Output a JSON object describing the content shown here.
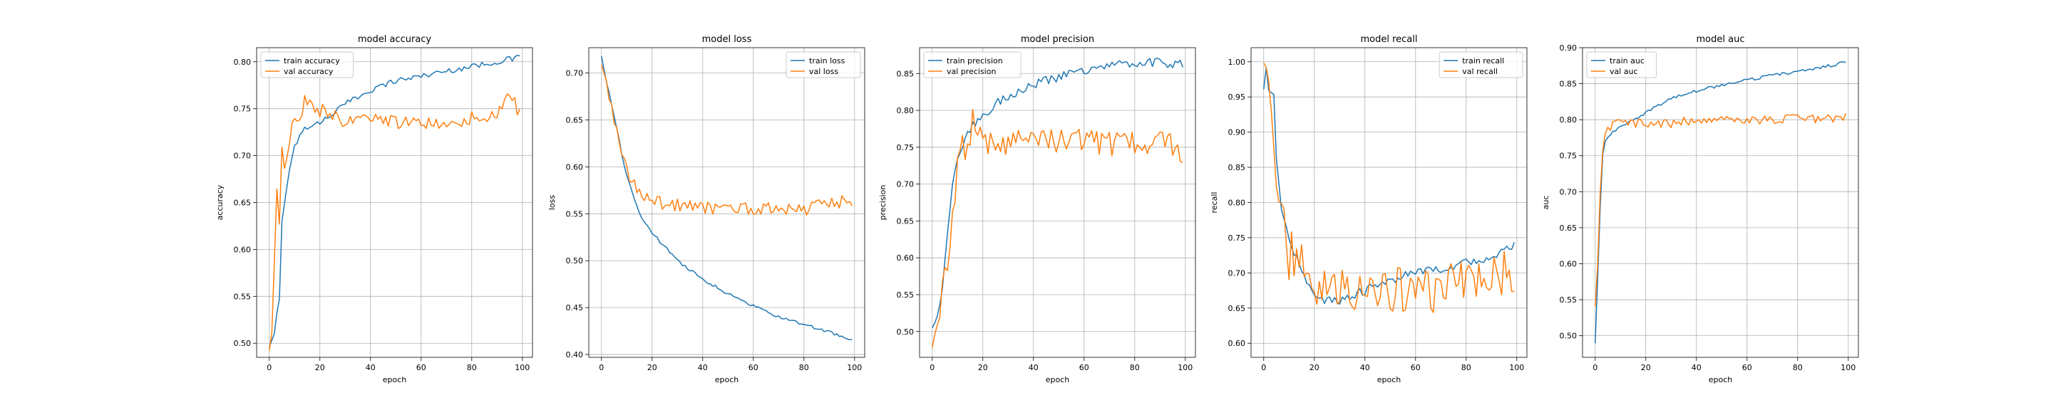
{
  "chart_data": [
    {
      "type": "line",
      "title": "model accuracy",
      "xlabel": "epoch",
      "ylabel": "accuracy",
      "xlim": [
        -5,
        104
      ],
      "ylim": [
        0.485,
        0.815
      ],
      "xticks": [
        0,
        20,
        40,
        60,
        80,
        100
      ],
      "yticks": [
        0.5,
        0.55,
        0.6,
        0.65,
        0.7,
        0.75,
        0.8
      ],
      "legend_position": "upper-left",
      "grid": true,
      "colors": [
        "#1f77b4",
        "#ff7f0e"
      ],
      "series": [
        {
          "name": "train accuracy",
          "anchors": [
            [
              0,
              0.495
            ],
            [
              2,
              0.51
            ],
            [
              4,
              0.55
            ],
            [
              5,
              0.63
            ],
            [
              7,
              0.67
            ],
            [
              10,
              0.71
            ],
            [
              14,
              0.73
            ],
            [
              20,
              0.735
            ],
            [
              25,
              0.745
            ],
            [
              30,
              0.755
            ],
            [
              40,
              0.77
            ],
            [
              50,
              0.78
            ],
            [
              60,
              0.785
            ],
            [
              70,
              0.79
            ],
            [
              80,
              0.795
            ],
            [
              90,
              0.8
            ],
            [
              99,
              0.805
            ]
          ]
        },
        {
          "name": "val accuracy",
          "anchors": [
            [
              0,
              0.49
            ],
            [
              1,
              0.51
            ],
            [
              3,
              0.66
            ],
            [
              4,
              0.63
            ],
            [
              5,
              0.71
            ],
            [
              6,
              0.69
            ],
            [
              8,
              0.72
            ],
            [
              10,
              0.74
            ],
            [
              12,
              0.735
            ],
            [
              14,
              0.76
            ],
            [
              18,
              0.745
            ],
            [
              22,
              0.75
            ],
            [
              30,
              0.735
            ],
            [
              40,
              0.74
            ],
            [
              50,
              0.735
            ],
            [
              60,
              0.735
            ],
            [
              70,
              0.73
            ],
            [
              80,
              0.74
            ],
            [
              90,
              0.745
            ],
            [
              95,
              0.765
            ],
            [
              99,
              0.745
            ]
          ]
        }
      ]
    },
    {
      "type": "line",
      "title": "model loss",
      "xlabel": "epoch",
      "ylabel": "loss",
      "xlim": [
        -5,
        104
      ],
      "ylim": [
        0.397,
        0.727
      ],
      "xticks": [
        0,
        20,
        40,
        60,
        80,
        100
      ],
      "yticks": [
        0.4,
        0.45,
        0.5,
        0.55,
        0.6,
        0.65,
        0.7
      ],
      "legend_position": "upper-right",
      "grid": true,
      "colors": [
        "#1f77b4",
        "#ff7f0e"
      ],
      "series": [
        {
          "name": "train loss",
          "anchors": [
            [
              0,
              0.718
            ],
            [
              2,
              0.69
            ],
            [
              5,
              0.655
            ],
            [
              8,
              0.615
            ],
            [
              10,
              0.59
            ],
            [
              13,
              0.565
            ],
            [
              16,
              0.545
            ],
            [
              20,
              0.53
            ],
            [
              25,
              0.515
            ],
            [
              30,
              0.5
            ],
            [
              40,
              0.48
            ],
            [
              50,
              0.465
            ],
            [
              60,
              0.452
            ],
            [
              70,
              0.44
            ],
            [
              80,
              0.432
            ],
            [
              90,
              0.424
            ],
            [
              99,
              0.415
            ]
          ]
        },
        {
          "name": "val loss",
          "anchors": [
            [
              0,
              0.71
            ],
            [
              2,
              0.69
            ],
            [
              5,
              0.65
            ],
            [
              8,
              0.615
            ],
            [
              10,
              0.595
            ],
            [
              13,
              0.58
            ],
            [
              16,
              0.57
            ],
            [
              20,
              0.565
            ],
            [
              25,
              0.56
            ],
            [
              30,
              0.56
            ],
            [
              40,
              0.555
            ],
            [
              50,
              0.558
            ],
            [
              60,
              0.555
            ],
            [
              70,
              0.555
            ],
            [
              80,
              0.555
            ],
            [
              90,
              0.56
            ],
            [
              99,
              0.565
            ]
          ]
        }
      ]
    },
    {
      "type": "line",
      "title": "model precision",
      "xlabel": "epoch",
      "ylabel": "precision",
      "xlim": [
        -5,
        104
      ],
      "ylim": [
        0.465,
        0.885
      ],
      "xticks": [
        0,
        20,
        40,
        60,
        80,
        100
      ],
      "yticks": [
        0.5,
        0.55,
        0.6,
        0.65,
        0.7,
        0.75,
        0.8,
        0.85
      ],
      "legend_position": "upper-left",
      "grid": true,
      "colors": [
        "#1f77b4",
        "#ff7f0e"
      ],
      "series": [
        {
          "name": "train precision",
          "anchors": [
            [
              0,
              0.505
            ],
            [
              2,
              0.52
            ],
            [
              4,
              0.56
            ],
            [
              6,
              0.63
            ],
            [
              8,
              0.7
            ],
            [
              10,
              0.74
            ],
            [
              13,
              0.76
            ],
            [
              16,
              0.78
            ],
            [
              20,
              0.79
            ],
            [
              25,
              0.81
            ],
            [
              30,
              0.82
            ],
            [
              40,
              0.835
            ],
            [
              50,
              0.845
            ],
            [
              60,
              0.855
            ],
            [
              70,
              0.86
            ],
            [
              80,
              0.865
            ],
            [
              90,
              0.865
            ],
            [
              99,
              0.862
            ]
          ]
        },
        {
          "name": "val precision",
          "anchors": [
            [
              0,
              0.48
            ],
            [
              1,
              0.495
            ],
            [
              3,
              0.52
            ],
            [
              5,
              0.6
            ],
            [
              6,
              0.58
            ],
            [
              8,
              0.65
            ],
            [
              10,
              0.73
            ],
            [
              12,
              0.76
            ],
            [
              14,
              0.74
            ],
            [
              16,
              0.79
            ],
            [
              20,
              0.76
            ],
            [
              30,
              0.755
            ],
            [
              40,
              0.755
            ],
            [
              50,
              0.76
            ],
            [
              60,
              0.76
            ],
            [
              70,
              0.755
            ],
            [
              80,
              0.755
            ],
            [
              90,
              0.76
            ],
            [
              99,
              0.745
            ]
          ]
        }
      ]
    },
    {
      "type": "line",
      "title": "model recall",
      "xlabel": "epoch",
      "ylabel": "recall",
      "xlim": [
        -5,
        104
      ],
      "ylim": [
        0.58,
        1.02
      ],
      "xticks": [
        0,
        20,
        40,
        60,
        80,
        100
      ],
      "yticks": [
        0.6,
        0.65,
        0.7,
        0.75,
        0.8,
        0.85,
        0.9,
        0.95,
        1.0
      ],
      "legend_position": "upper-right",
      "grid": true,
      "colors": [
        "#1f77b4",
        "#ff7f0e"
      ],
      "series": [
        {
          "name": "train recall",
          "anchors": [
            [
              0,
              0.96
            ],
            [
              1,
              0.99
            ],
            [
              2,
              0.96
            ],
            [
              4,
              0.95
            ],
            [
              5,
              0.86
            ],
            [
              7,
              0.79
            ],
            [
              9,
              0.76
            ],
            [
              11,
              0.74
            ],
            [
              14,
              0.71
            ],
            [
              17,
              0.69
            ],
            [
              20,
              0.67
            ],
            [
              25,
              0.66
            ],
            [
              30,
              0.66
            ],
            [
              40,
              0.675
            ],
            [
              50,
              0.69
            ],
            [
              60,
              0.7
            ],
            [
              70,
              0.705
            ],
            [
              80,
              0.715
            ],
            [
              90,
              0.72
            ],
            [
              99,
              0.74
            ]
          ]
        },
        {
          "name": "val recall",
          "anchors": [
            [
              0,
              1.0
            ],
            [
              2,
              0.98
            ],
            [
              4,
              0.85
            ],
            [
              6,
              0.82
            ],
            [
              8,
              0.79
            ],
            [
              10,
              0.72
            ],
            [
              13,
              0.73
            ],
            [
              16,
              0.7
            ],
            [
              20,
              0.67
            ],
            [
              25,
              0.67
            ],
            [
              30,
              0.675
            ],
            [
              40,
              0.68
            ],
            [
              50,
              0.68
            ],
            [
              60,
              0.675
            ],
            [
              70,
              0.68
            ],
            [
              80,
              0.7
            ],
            [
              90,
              0.7
            ],
            [
              99,
              0.7
            ]
          ]
        }
      ]
    },
    {
      "type": "line",
      "title": "model auc",
      "xlabel": "epoch",
      "ylabel": "auc",
      "xlim": [
        -5,
        104
      ],
      "ylim": [
        0.47,
        0.9
      ],
      "xticks": [
        0,
        20,
        40,
        60,
        80,
        100
      ],
      "yticks": [
        0.5,
        0.55,
        0.6,
        0.65,
        0.7,
        0.75,
        0.8,
        0.85,
        0.9
      ],
      "legend_position": "upper-left",
      "grid": true,
      "colors": [
        "#1f77b4",
        "#ff7f0e"
      ],
      "series": [
        {
          "name": "train auc",
          "anchors": [
            [
              0,
              0.49
            ],
            [
              1,
              0.58
            ],
            [
              2,
              0.68
            ],
            [
              3,
              0.75
            ],
            [
              4,
              0.77
            ],
            [
              6,
              0.78
            ],
            [
              8,
              0.785
            ],
            [
              12,
              0.795
            ],
            [
              16,
              0.8
            ],
            [
              20,
              0.81
            ],
            [
              25,
              0.82
            ],
            [
              30,
              0.83
            ],
            [
              40,
              0.84
            ],
            [
              50,
              0.848
            ],
            [
              60,
              0.855
            ],
            [
              70,
              0.862
            ],
            [
              80,
              0.867
            ],
            [
              90,
              0.873
            ],
            [
              99,
              0.88
            ]
          ]
        },
        {
          "name": "val auc",
          "anchors": [
            [
              0,
              0.54
            ],
            [
              1,
              0.6
            ],
            [
              2,
              0.7
            ],
            [
              3,
              0.76
            ],
            [
              4,
              0.78
            ],
            [
              6,
              0.79
            ],
            [
              8,
              0.795
            ],
            [
              12,
              0.795
            ],
            [
              16,
              0.795
            ],
            [
              20,
              0.795
            ],
            [
              30,
              0.795
            ],
            [
              40,
              0.8
            ],
            [
              50,
              0.8
            ],
            [
              60,
              0.8
            ],
            [
              70,
              0.8
            ],
            [
              80,
              0.802
            ],
            [
              90,
              0.8
            ],
            [
              99,
              0.805
            ]
          ]
        }
      ]
    }
  ]
}
